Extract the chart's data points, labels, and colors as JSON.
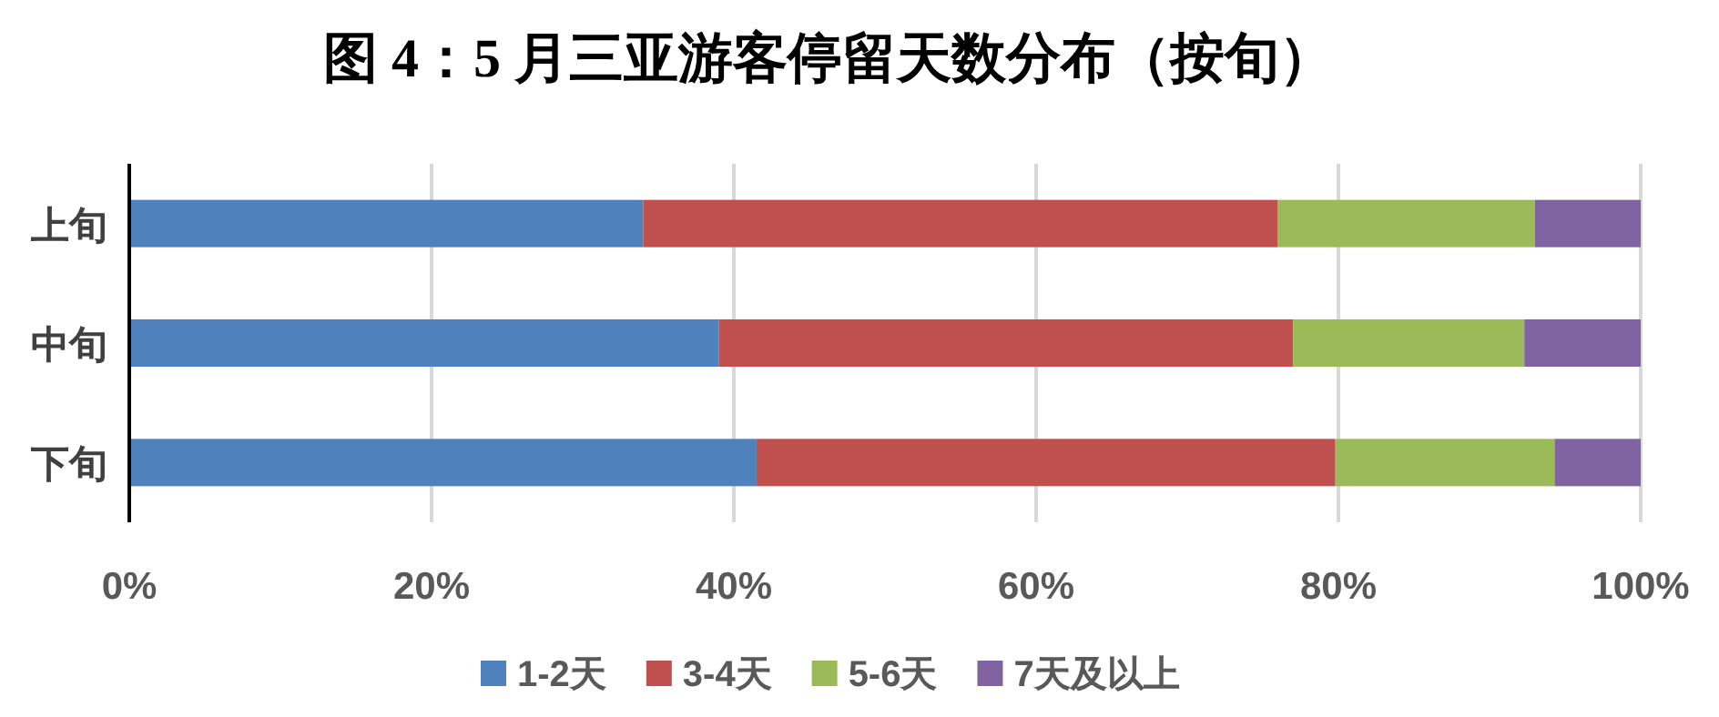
{
  "chart_data": {
    "type": "bar",
    "title": "图 4：5 月三亚游客停留天数分布（按旬）",
    "orientation": "horizontal",
    "stacked": true,
    "categories": [
      "上旬",
      "中旬",
      "下旬"
    ],
    "series": [
      {
        "name": "1-2天",
        "color": "#4f81bd",
        "values": [
          34,
          39,
          41.5
        ]
      },
      {
        "name": "3-4天",
        "color": "#c0504d",
        "values": [
          42,
          38,
          38.3
        ]
      },
      {
        "name": "5-6天",
        "color": "#9bbb59",
        "values": [
          17,
          15.3,
          14.5
        ]
      },
      {
        "name": "7天及以上",
        "color": "#8064a2",
        "values": [
          7,
          7.7,
          5.7
        ]
      }
    ],
    "xlim": [
      0,
      100
    ],
    "xticks": [
      {
        "value": 0,
        "label": "0%"
      },
      {
        "value": 20,
        "label": "20%"
      },
      {
        "value": 40,
        "label": "40%"
      },
      {
        "value": 60,
        "label": "60%"
      },
      {
        "value": 80,
        "label": "80%"
      },
      {
        "value": 100,
        "label": "100%"
      }
    ],
    "grid": "x",
    "legend": "bottom"
  }
}
